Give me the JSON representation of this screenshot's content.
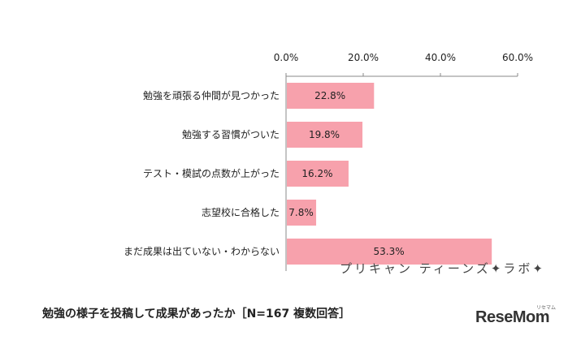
{
  "chart_data": {
    "type": "bar",
    "orientation": "horizontal",
    "categories": [
      "勉強を頑張る仲間が見つかった",
      "勉強する習慣がついた",
      "テスト・模試の点数が上がった",
      "志望校に合格した",
      "まだ成果は出ていない・わからない"
    ],
    "values": [
      22.8,
      19.8,
      16.2,
      7.8,
      53.3
    ],
    "value_labels": [
      "22.8%",
      "19.8%",
      "16.2%",
      "7.8%",
      "53.3%"
    ],
    "x_ticks": [
      "0.0%",
      "20.0%",
      "40.0%",
      "60.0%"
    ],
    "xlim": [
      0,
      60
    ],
    "axis_position": "top",
    "grid": false,
    "bar_color": "#f7a1ac"
  },
  "brand_text": "プリキャン ティーンズ✦ラボ✦",
  "caption": "勉強の様子を投稿して成果があったか［N=167 複数回答］",
  "logo": "ReseMom",
  "logo_sub": "リセマム"
}
